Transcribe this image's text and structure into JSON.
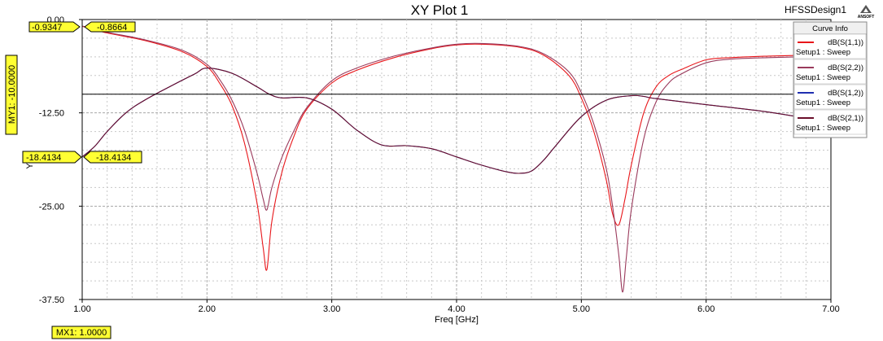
{
  "title": "XY Plot 1",
  "design_name": "HFSSDesign1",
  "logo_text": "ANSOFT",
  "legend": {
    "title": "Curve Info",
    "entries": [
      {
        "name": "dB(S(1,1))",
        "sub": "Setup1 : Sweep",
        "color": "#e8161a"
      },
      {
        "name": "dB(S(2,2))",
        "sub": "Setup1 : Sweep",
        "color": "#9a3a5c"
      },
      {
        "name": "dB(S(1,2))",
        "sub": "Setup1 : Sweep",
        "color": "#1f2fb0"
      },
      {
        "name": "dB(S(2,1))",
        "sub": "Setup1 : Sweep",
        "color": "#6a0e2a"
      }
    ]
  },
  "markers": {
    "my1": "MY1: -10.0000",
    "mx1": "MX1: 1.0000",
    "left_top": "-0.9347",
    "right_top": "-0.8664",
    "left_mid": "-18.4134",
    "right_mid": "-18.4134"
  },
  "chart_data": {
    "type": "line",
    "xlabel": "Freq [GHz]",
    "ylabel": "Y",
    "xlim": [
      1.0,
      7.0
    ],
    "ylim": [
      -37.5,
      0.0
    ],
    "xticks": [
      "1.00",
      "2.00",
      "3.00",
      "4.00",
      "5.00",
      "6.00",
      "7.00"
    ],
    "yticks": [
      {
        "v": 0.0,
        "label": "0.00"
      },
      {
        "v": -12.5,
        "label": "-12.50"
      },
      {
        "v": -25.0,
        "label": "-25.00"
      },
      {
        "v": -37.5,
        "label": "-37.50"
      }
    ],
    "grid": true,
    "marker_y": -10.0,
    "marker_x": 1.0,
    "series": [
      {
        "name": "dB(S(1,1))",
        "color": "#e8161a",
        "x": [
          1.0,
          1.2,
          1.5,
          1.8,
          2.0,
          2.1,
          2.2,
          2.3,
          2.4,
          2.45,
          2.48,
          2.52,
          2.6,
          2.7,
          2.8,
          3.0,
          3.2,
          3.5,
          3.8,
          4.0,
          4.2,
          4.5,
          4.7,
          4.9,
          5.0,
          5.1,
          5.2,
          5.25,
          5.3,
          5.35,
          5.4,
          5.5,
          5.6,
          5.7,
          5.8,
          6.0,
          6.2,
          6.5,
          7.0
        ],
        "y": [
          -0.9,
          -1.8,
          -2.8,
          -4.3,
          -6.3,
          -8.5,
          -11.5,
          -16.5,
          -24.5,
          -30.5,
          -33.5,
          -27.0,
          -20.5,
          -15.5,
          -12.0,
          -8.5,
          -6.8,
          -5.1,
          -3.9,
          -3.4,
          -3.3,
          -3.7,
          -4.8,
          -7.5,
          -10.5,
          -15.0,
          -21.5,
          -26.0,
          -27.5,
          -24.0,
          -19.5,
          -12.5,
          -9.0,
          -7.5,
          -6.7,
          -5.4,
          -5.1,
          -4.9,
          -4.7
        ]
      },
      {
        "name": "dB(S(2,2))",
        "color": "#9a3a5c",
        "x": [
          1.0,
          1.2,
          1.5,
          1.8,
          2.0,
          2.1,
          2.2,
          2.3,
          2.4,
          2.45,
          2.48,
          2.52,
          2.6,
          2.7,
          2.8,
          3.0,
          3.2,
          3.5,
          3.8,
          4.0,
          4.2,
          4.5,
          4.7,
          4.9,
          5.0,
          5.1,
          5.2,
          5.25,
          5.3,
          5.33,
          5.36,
          5.4,
          5.5,
          5.6,
          5.7,
          5.8,
          6.0,
          6.2,
          6.5,
          7.0
        ],
        "y": [
          -0.87,
          -1.7,
          -2.7,
          -4.1,
          -6.0,
          -8.0,
          -10.8,
          -14.8,
          -20.5,
          -24.0,
          -25.5,
          -22.5,
          -18.5,
          -14.8,
          -11.8,
          -8.2,
          -6.5,
          -4.9,
          -3.8,
          -3.3,
          -3.2,
          -3.6,
          -4.6,
          -7.0,
          -9.8,
          -14.0,
          -20.0,
          -25.0,
          -31.5,
          -36.5,
          -32.0,
          -25.5,
          -16.0,
          -11.0,
          -8.5,
          -7.3,
          -5.8,
          -5.3,
          -5.1,
          -4.9
        ]
      },
      {
        "name": "dB(S(1,2))",
        "color": "#1f2fb0",
        "x": [
          1.0,
          1.1,
          1.2,
          1.35,
          1.5,
          1.7,
          1.9,
          2.0,
          2.2,
          2.4,
          2.5,
          2.6,
          2.8,
          3.0,
          3.2,
          3.4,
          3.6,
          3.8,
          4.0,
          4.2,
          4.4,
          4.5,
          4.6,
          4.7,
          4.8,
          5.0,
          5.2,
          5.4,
          5.5,
          5.6,
          6.0,
          6.5,
          7.0
        ],
        "y": [
          -18.4,
          -17.0,
          -15.0,
          -12.5,
          -10.8,
          -9.0,
          -7.3,
          -6.5,
          -7.2,
          -9.0,
          -10.0,
          -10.5,
          -10.5,
          -12.0,
          -14.8,
          -16.8,
          -16.9,
          -17.3,
          -18.4,
          -19.5,
          -20.4,
          -20.6,
          -20.3,
          -18.8,
          -16.8,
          -13.0,
          -10.8,
          -10.2,
          -10.3,
          -10.6,
          -11.4,
          -12.4,
          -13.8
        ]
      },
      {
        "name": "dB(S(2,1))",
        "color": "#6a0e2a",
        "x": [
          1.0,
          1.1,
          1.2,
          1.35,
          1.5,
          1.7,
          1.9,
          2.0,
          2.2,
          2.4,
          2.5,
          2.6,
          2.8,
          3.0,
          3.2,
          3.4,
          3.6,
          3.8,
          4.0,
          4.2,
          4.4,
          4.5,
          4.6,
          4.7,
          4.8,
          5.0,
          5.2,
          5.4,
          5.5,
          5.6,
          6.0,
          6.5,
          7.0
        ],
        "y": [
          -18.4,
          -17.0,
          -15.0,
          -12.5,
          -10.8,
          -9.0,
          -7.3,
          -6.5,
          -7.2,
          -9.0,
          -10.0,
          -10.5,
          -10.5,
          -12.0,
          -14.8,
          -16.8,
          -16.9,
          -17.3,
          -18.4,
          -19.5,
          -20.4,
          -20.6,
          -20.3,
          -18.8,
          -16.8,
          -13.0,
          -10.8,
          -10.2,
          -10.3,
          -10.6,
          -11.4,
          -12.4,
          -13.8
        ]
      }
    ]
  }
}
